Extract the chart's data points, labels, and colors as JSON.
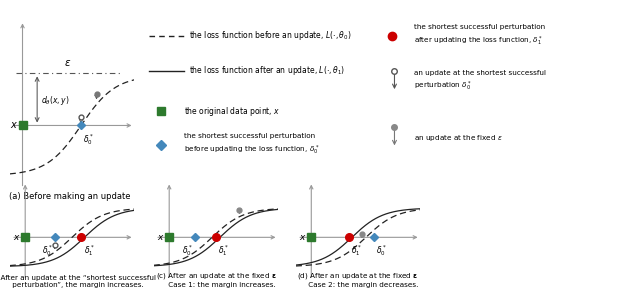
{
  "bg_color": "#ffffff",
  "axis_color": "#999999",
  "green_color": "#2d7a2d",
  "red_color": "#cc0000",
  "blue_color": "#4488bb",
  "gray_arrow_color": "#888888",
  "curve_color": "#222222",
  "panel_a_caption": "(a) Before making an update",
  "panel_b_caption": "(b) After an update at the “shortest successful\n     perturbation”, the margin increases.",
  "panel_c_caption": "(c) After an update at the fixed $\\mathbf{\\epsilon}$\n     Case 1: the margin increases.",
  "panel_d_caption": "(d) After an update at the fixed $\\mathbf{\\epsilon}$\n     Case 2: the margin decreases."
}
